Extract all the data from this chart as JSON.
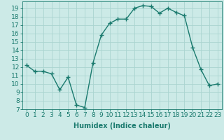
{
  "x": [
    0,
    1,
    2,
    3,
    4,
    5,
    6,
    7,
    8,
    9,
    10,
    11,
    12,
    13,
    14,
    15,
    16,
    17,
    18,
    19,
    20,
    21,
    22,
    23
  ],
  "y": [
    12.2,
    11.5,
    11.5,
    11.2,
    9.3,
    10.8,
    7.5,
    7.2,
    12.5,
    15.8,
    17.2,
    17.7,
    17.7,
    19.0,
    19.3,
    19.2,
    18.4,
    19.0,
    18.5,
    18.1,
    14.3,
    11.7,
    9.8,
    10.0
  ],
  "line_color": "#1a7a6e",
  "marker": "+",
  "marker_size": 4,
  "bg_color": "#cceae7",
  "grid_color": "#aad4d0",
  "xlabel": "Humidex (Indice chaleur)",
  "xlim": [
    -0.5,
    23.5
  ],
  "ylim": [
    7,
    19.8
  ],
  "xtick_labels": [
    "0",
    "1",
    "2",
    "3",
    "4",
    "5",
    "6",
    "7",
    "8",
    "9",
    "10",
    "11",
    "12",
    "13",
    "14",
    "15",
    "16",
    "17",
    "18",
    "19",
    "20",
    "21",
    "22",
    "23"
  ],
  "ytick_values": [
    7,
    8,
    9,
    10,
    11,
    12,
    13,
    14,
    15,
    16,
    17,
    18,
    19
  ],
  "label_fontsize": 7,
  "tick_fontsize": 6.5
}
